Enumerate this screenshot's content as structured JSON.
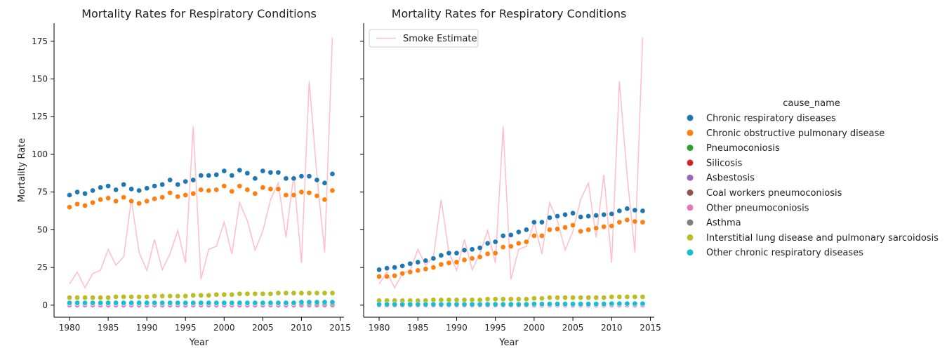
{
  "chart_data": [
    {
      "type": "scatter",
      "title": "Mortality Rates for Respiratory Conditions",
      "xlabel": "Year",
      "ylabel": "Mortality Rate",
      "xlim": [
        1978,
        2015.5
      ],
      "ylim": [
        -8,
        187
      ],
      "xticks": [
        1980,
        1985,
        1990,
        1995,
        2000,
        2005,
        2010,
        2015
      ],
      "yticks": [
        0,
        25,
        50,
        75,
        100,
        125,
        150,
        175
      ],
      "show_legend": false,
      "x": [
        1980,
        1981,
        1982,
        1983,
        1984,
        1985,
        1986,
        1987,
        1988,
        1989,
        1990,
        1991,
        1992,
        1993,
        1994,
        1995,
        1996,
        1997,
        1998,
        1999,
        2000,
        2001,
        2002,
        2003,
        2004,
        2005,
        2006,
        2007,
        2008,
        2009,
        2010,
        2011,
        2012,
        2013,
        2014
      ],
      "series": [
        {
          "name": "Chronic respiratory diseases",
          "color": "#1f77b4",
          "values": [
            73,
            75,
            74,
            76,
            78,
            79,
            76.5,
            80,
            77,
            76,
            77.5,
            79,
            80,
            83,
            80,
            82,
            83,
            86,
            86,
            86.5,
            89,
            86,
            89.5,
            87.5,
            84,
            89,
            88,
            88,
            84,
            84,
            85.5,
            85.5,
            83,
            81,
            87
          ]
        },
        {
          "name": "Chronic obstructive pulmonary disease",
          "color": "#ff7f0e",
          "values": [
            65,
            67,
            66,
            68,
            70,
            71,
            69,
            71.5,
            69,
            67.5,
            69,
            70.5,
            71.5,
            74.5,
            72,
            73,
            74,
            76.5,
            76,
            76.5,
            79,
            75.5,
            79,
            76.5,
            74,
            78,
            77,
            77,
            73,
            73,
            75,
            74.5,
            72.5,
            70,
            76
          ]
        },
        {
          "name": "Pneumoconiosis",
          "color": "#2ca02c",
          "values": [
            0.5,
            0.5,
            0.5,
            0.5,
            0.5,
            0.5,
            0.5,
            0.5,
            0.5,
            0.5,
            0.5,
            0.5,
            0.5,
            0.5,
            0.5,
            0.5,
            0.5,
            0.5,
            0.5,
            0.5,
            0.5,
            0.5,
            0.5,
            0.5,
            0.5,
            0.5,
            0.5,
            0.5,
            0.5,
            0.5,
            0.5,
            0.5,
            0.5,
            0.5,
            0.5
          ]
        },
        {
          "name": "Silicosis",
          "color": "#d62728",
          "values": [
            0.2,
            0.2,
            0.2,
            0.2,
            0.2,
            0.2,
            0.2,
            0.2,
            0.2,
            0.2,
            0.2,
            0.2,
            0.2,
            0.2,
            0.2,
            0.2,
            0.2,
            0.2,
            0.2,
            0.2,
            0.2,
            0.2,
            0.2,
            0.2,
            0.2,
            0.2,
            0.2,
            0.2,
            0.2,
            0.2,
            0.2,
            0.2,
            0.2,
            0.2,
            0.2
          ]
        },
        {
          "name": "Asbestosis",
          "color": "#9467bd",
          "values": [
            0.1,
            0.1,
            0.1,
            0.1,
            0.1,
            0.1,
            0.1,
            0.1,
            0.1,
            0.1,
            0.1,
            0.1,
            0.1,
            0.1,
            0.1,
            0.1,
            0.1,
            0.1,
            0.1,
            0.1,
            0.1,
            0.1,
            0.1,
            0.1,
            0.1,
            0.1,
            0.1,
            0.1,
            0.1,
            0.1,
            0.1,
            0.1,
            0.1,
            0.1,
            0.1
          ]
        },
        {
          "name": "Coal workers pneumoconiosis",
          "color": "#8c564b",
          "values": [
            0.1,
            0.1,
            0.1,
            0.1,
            0.1,
            0.1,
            0.1,
            0.1,
            0.1,
            0.1,
            0.1,
            0.1,
            0.1,
            0.1,
            0.1,
            0.1,
            0.1,
            0.1,
            0.1,
            0.1,
            0.1,
            0.1,
            0.1,
            0.1,
            0.1,
            0.1,
            0.1,
            0.1,
            0.1,
            0.1,
            0.1,
            0.1,
            0.1,
            0.1,
            0.1
          ]
        },
        {
          "name": "Other pneumoconiosis",
          "color": "#e377c2",
          "values": [
            0,
            0,
            0,
            0,
            0,
            0,
            0,
            0,
            0,
            0,
            0,
            0,
            0,
            0,
            0,
            0,
            0,
            0,
            0,
            0,
            0,
            0,
            0,
            0,
            0,
            0,
            0,
            0,
            0,
            0,
            0,
            0,
            0,
            0,
            0
          ]
        },
        {
          "name": "Asthma",
          "color": "#7f7f7f",
          "values": [
            1.2,
            1.2,
            1.2,
            1.2,
            1.2,
            1.2,
            1.2,
            1.2,
            1.2,
            1.2,
            1.2,
            1.2,
            1.2,
            1.2,
            1.2,
            1.2,
            1.2,
            1.2,
            1.2,
            1.2,
            1.2,
            1.2,
            1.2,
            1.2,
            1.2,
            1.2,
            1.2,
            1.2,
            1.2,
            1.2,
            1.2,
            1.2,
            1.2,
            1.2,
            1.2
          ]
        },
        {
          "name": "Interstitial lung disease and pulmonary sarcoidosis",
          "color": "#bcbd22",
          "values": [
            5,
            5,
            5,
            5,
            5,
            5,
            5.5,
            5.5,
            5.5,
            5.5,
            5.5,
            6,
            6,
            6,
            6,
            6,
            6.5,
            6.5,
            6.5,
            7,
            7,
            7,
            7.5,
            7.5,
            7.5,
            7.5,
            7.5,
            8,
            8,
            8,
            8,
            8,
            8,
            8,
            8
          ]
        },
        {
          "name": "Other chronic respiratory diseases",
          "color": "#17becf",
          "values": [
            1.5,
            1.5,
            1.5,
            1.5,
            1.5,
            1.5,
            1.5,
            1.5,
            1.5,
            1.5,
            1.5,
            1.5,
            1.5,
            1.5,
            1.5,
            1.5,
            1.5,
            1.5,
            1.5,
            1.5,
            1.5,
            1.5,
            1.5,
            1.5,
            1.5,
            1.5,
            1.5,
            1.5,
            1.5,
            1.5,
            2,
            2,
            2,
            2,
            2
          ]
        }
      ],
      "line_series": [
        {
          "name": "Smoke Estimate",
          "color": "#ffc0cb",
          "values": [
            14,
            22,
            11.5,
            21,
            23,
            37,
            26.5,
            32,
            70,
            35,
            23,
            43.5,
            23.5,
            34,
            49.5,
            28,
            118.5,
            17,
            37,
            39,
            55,
            34,
            68,
            56,
            36.5,
            49,
            70,
            81,
            45,
            86.5,
            28,
            148.5,
            86,
            35,
            177.5
          ]
        }
      ]
    },
    {
      "type": "scatter",
      "title": "Mortality Rates for Respiratory Conditions",
      "xlabel": "Year",
      "ylabel": "",
      "xlim": [
        1978,
        2015.5
      ],
      "ylim": [
        -8,
        187
      ],
      "xticks": [
        1980,
        1985,
        1990,
        1995,
        2000,
        2005,
        2010,
        2015
      ],
      "yticks": [
        0,
        25,
        50,
        75,
        100,
        125,
        150,
        175
      ],
      "show_legend": true,
      "legend_position": "top-left",
      "x": [
        1980,
        1981,
        1982,
        1983,
        1984,
        1985,
        1986,
        1987,
        1988,
        1989,
        1990,
        1991,
        1992,
        1993,
        1994,
        1995,
        1996,
        1997,
        1998,
        1999,
        2000,
        2001,
        2002,
        2003,
        2004,
        2005,
        2006,
        2007,
        2008,
        2009,
        2010,
        2011,
        2012,
        2013,
        2014
      ],
      "series": [
        {
          "name": "Chronic respiratory diseases",
          "color": "#1f77b4",
          "values": [
            23.5,
            24.5,
            25,
            26,
            27.5,
            28.5,
            29.5,
            31,
            33,
            34.5,
            34.5,
            36.5,
            37,
            38,
            41,
            42,
            46,
            46.5,
            48.5,
            50,
            55,
            55,
            58,
            59,
            60,
            61,
            58.5,
            59,
            59.5,
            60,
            60.5,
            62.5,
            64,
            63,
            62.5
          ]
        },
        {
          "name": "Chronic obstructive pulmonary disease",
          "color": "#ff7f0e",
          "values": [
            19,
            19,
            19.5,
            21,
            22,
            23,
            24,
            25,
            27,
            28,
            28.5,
            30,
            31,
            32,
            34,
            34.5,
            38.5,
            39,
            41,
            42,
            46,
            46,
            50,
            50.5,
            51.5,
            53,
            49,
            50,
            51,
            52,
            52.5,
            55,
            56.5,
            55.5,
            55
          ]
        },
        {
          "name": "Pneumoconiosis",
          "color": "#2ca02c",
          "values": [
            0.4,
            0.4,
            0.4,
            0.4,
            0.4,
            0.4,
            0.4,
            0.4,
            0.4,
            0.4,
            0.4,
            0.4,
            0.4,
            0.4,
            0.4,
            0.4,
            0.4,
            0.4,
            0.4,
            0.4,
            0.4,
            0.4,
            0.4,
            0.4,
            0.4,
            0.4,
            0.4,
            0.4,
            0.4,
            0.4,
            0.4,
            0.4,
            0.4,
            0.4,
            0.4
          ]
        },
        {
          "name": "Silicosis",
          "color": "#d62728",
          "values": [
            0.2,
            0.2,
            0.2,
            0.2,
            0.2,
            0.2,
            0.2,
            0.2,
            0.2,
            0.2,
            0.2,
            0.2,
            0.2,
            0.2,
            0.2,
            0.2,
            0.2,
            0.2,
            0.2,
            0.2,
            0.2,
            0.2,
            0.2,
            0.2,
            0.2,
            0.2,
            0.2,
            0.2,
            0.2,
            0.2,
            0.2,
            0.2,
            0.2,
            0.2,
            0.2
          ]
        },
        {
          "name": "Asbestosis",
          "color": "#9467bd",
          "values": [
            0.1,
            0.1,
            0.1,
            0.1,
            0.1,
            0.1,
            0.1,
            0.1,
            0.1,
            0.1,
            0.1,
            0.1,
            0.1,
            0.1,
            0.1,
            0.1,
            0.1,
            0.1,
            0.1,
            0.1,
            0.1,
            0.1,
            0.1,
            0.1,
            0.1,
            0.1,
            0.1,
            0.1,
            0.1,
            0.1,
            0.1,
            0.1,
            0.1,
            0.1,
            0.1
          ]
        },
        {
          "name": "Coal workers pneumoconiosis",
          "color": "#8c564b",
          "values": [
            0.1,
            0.1,
            0.1,
            0.1,
            0.1,
            0.1,
            0.1,
            0.1,
            0.1,
            0.1,
            0.1,
            0.1,
            0.1,
            0.1,
            0.1,
            0.1,
            0.1,
            0.1,
            0.1,
            0.1,
            0.1,
            0.1,
            0.1,
            0.1,
            0.1,
            0.1,
            0.1,
            0.1,
            0.1,
            0.1,
            0.1,
            0.1,
            0.1,
            0.1,
            0.1
          ]
        },
        {
          "name": "Other pneumoconiosis",
          "color": "#e377c2",
          "values": [
            0,
            0,
            0,
            0,
            0,
            0,
            0,
            0,
            0,
            0,
            0,
            0,
            0,
            0,
            0,
            0,
            0,
            0,
            0,
            0,
            0,
            0,
            0,
            0,
            0,
            0,
            0,
            0,
            0,
            0,
            0,
            0,
            0,
            0,
            0
          ]
        },
        {
          "name": "Asthma",
          "color": "#7f7f7f",
          "values": [
            0.8,
            0.8,
            0.8,
            0.8,
            0.8,
            0.8,
            0.8,
            0.8,
            0.8,
            0.8,
            0.8,
            0.8,
            0.8,
            0.8,
            0.8,
            0.8,
            0.8,
            0.8,
            0.8,
            0.8,
            0.8,
            0.8,
            0.8,
            0.8,
            0.8,
            0.8,
            0.8,
            0.8,
            0.8,
            0.8,
            0.8,
            0.8,
            0.8,
            0.8,
            0.8
          ]
        },
        {
          "name": "Interstitial lung disease and pulmonary sarcoidosis",
          "color": "#bcbd22",
          "values": [
            3,
            3,
            3,
            3,
            3,
            3,
            3,
            3.5,
            3.5,
            3.5,
            3.5,
            3.5,
            3.5,
            3.5,
            4,
            4,
            4,
            4,
            4,
            4,
            4.5,
            4.5,
            5,
            5,
            5,
            5,
            5,
            5,
            5,
            5,
            5.5,
            5.5,
            5.5,
            5.5,
            5.5
          ]
        },
        {
          "name": "Other chronic respiratory diseases",
          "color": "#17becf",
          "values": [
            0.5,
            0.5,
            0.5,
            0.5,
            0.5,
            0.5,
            0.5,
            0.5,
            0.5,
            0.5,
            0.5,
            0.5,
            0.5,
            0.5,
            0.5,
            0.5,
            0.5,
            0.5,
            0.5,
            0.5,
            0.8,
            0.8,
            0.8,
            0.8,
            0.8,
            0.8,
            0.8,
            0.8,
            0.8,
            0.8,
            1,
            1,
            1,
            1,
            1
          ]
        }
      ],
      "line_series": [
        {
          "name": "Smoke Estimate",
          "color": "#ffc0cb",
          "values": [
            14,
            22,
            11.5,
            21,
            23,
            37,
            26.5,
            32,
            70,
            35,
            23,
            43.5,
            23.5,
            34,
            49.5,
            28,
            118.5,
            17,
            37,
            39,
            55,
            34,
            68,
            56,
            36.5,
            49,
            70,
            81,
            45,
            86.5,
            28,
            148.5,
            86,
            35,
            177.5
          ]
        }
      ]
    }
  ],
  "legend": {
    "title": "cause_name",
    "entries": [
      {
        "label": "Chronic respiratory diseases",
        "color": "#1f77b4"
      },
      {
        "label": "Chronic obstructive pulmonary disease",
        "color": "#ff7f0e"
      },
      {
        "label": "Pneumoconiosis",
        "color": "#2ca02c"
      },
      {
        "label": "Silicosis",
        "color": "#d62728"
      },
      {
        "label": "Asbestosis",
        "color": "#9467bd"
      },
      {
        "label": "Coal workers pneumoconiosis",
        "color": "#8c564b"
      },
      {
        "label": "Other pneumoconiosis",
        "color": "#e377c2"
      },
      {
        "label": "Asthma",
        "color": "#7f7f7f"
      },
      {
        "label": "Interstitial lung disease and pulmonary sarcoidosis",
        "color": "#bcbd22"
      },
      {
        "label": "Other chronic respiratory diseases",
        "color": "#17becf"
      }
    ]
  }
}
